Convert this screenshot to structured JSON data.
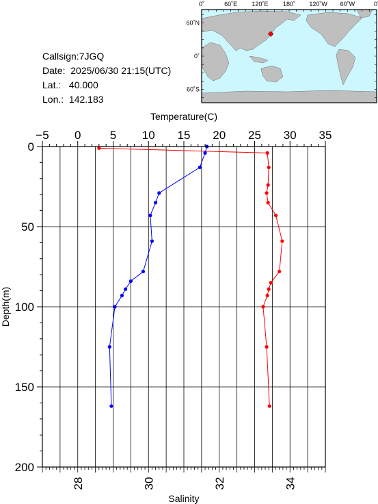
{
  "station": {
    "callsign_line": "Callsign:7JGQ",
    "date_line": "Date:  2025/06/30 21:15(UTC)",
    "lat_line": "Lat.:   40.000",
    "lon_line": "Lon.:  142.183"
  },
  "map": {
    "top_labels": [
      "0˚",
      "60˚E",
      "120˚E",
      "180˚",
      "120˚W",
      "60˚W",
      "0˚"
    ],
    "left_labels": [
      "60˚N",
      "0˚",
      "60˚S"
    ],
    "ocean_color": "#ccf7ff",
    "land_color": "#bfbfbf",
    "marker_color": "#ff0000",
    "station_lon": 142.183,
    "station_lat": 40.0
  },
  "chart_data": {
    "type": "line",
    "ylabel": "Depth(m)",
    "ylim": [
      200,
      0
    ],
    "yticks": [
      "0",
      "50",
      "100",
      "150",
      "200"
    ],
    "x_top": {
      "label": "Temperature(C)",
      "range": [
        -5,
        35
      ],
      "ticks": [
        "−5",
        "0",
        "5",
        "10",
        "15",
        "20",
        "25",
        "30",
        "35"
      ]
    },
    "x_bottom": {
      "label": "Salinity",
      "range": [
        27,
        35
      ],
      "ticks": [
        "28",
        "30",
        "32",
        "34"
      ]
    },
    "grid": true,
    "series": [
      {
        "axis": "top",
        "color": "#ff0000",
        "x": [
          3.0,
          26.8,
          27.0,
          26.9,
          26.7,
          26.9,
          28.0,
          28.9,
          28.5,
          27.3,
          27.0,
          26.8,
          26.2,
          26.7,
          27.1
        ],
        "y": [
          1,
          4,
          13,
          24,
          29,
          35,
          43,
          59,
          78,
          85,
          89,
          93,
          100,
          125,
          162
        ]
      },
      {
        "axis": "bottom",
        "color": "#0000ff",
        "x": [
          31.65,
          31.6,
          31.45,
          30.3,
          30.2,
          30.05,
          30.1,
          29.85,
          29.5,
          29.35,
          29.25,
          29.05,
          28.9,
          28.95
        ],
        "y": [
          0,
          4,
          13,
          29,
          35,
          43,
          59,
          78,
          84,
          89,
          93,
          100,
          125,
          162
        ]
      }
    ]
  }
}
